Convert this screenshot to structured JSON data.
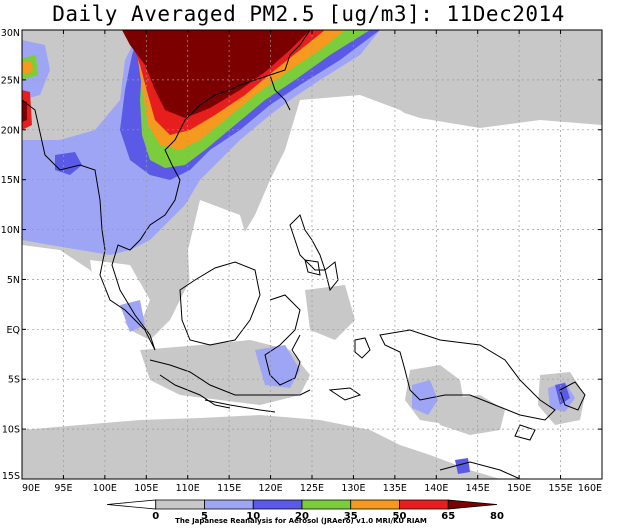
{
  "title": "Daily Averaged PM2.5 [ug/m3]: 11Dec2014",
  "credit": "The Japanese Reanalysis for Aerosol (JRAero) v1.0 MRI/KU RIAM",
  "map": {
    "lon_range": [
      90,
      160
    ],
    "lat_range": [
      -15,
      30
    ],
    "grid": true
  },
  "lon_ticks": [
    "90E",
    "95E",
    "100E",
    "105E",
    "110E",
    "115E",
    "120E",
    "125E",
    "130E",
    "135E",
    "140E",
    "145E",
    "150E",
    "155E",
    "160E"
  ],
  "lat_ticks": [
    "30N",
    "25N",
    "20N",
    "15N",
    "10N",
    "5N",
    "EQ",
    "5S",
    "10S",
    "15S"
  ],
  "colorbar": {
    "levels": [
      "0",
      "5",
      "10",
      "20",
      "35",
      "50",
      "65",
      "80"
    ],
    "colors": [
      "#ffffff",
      "#c8c8c8",
      "#9fa5f5",
      "#5a5ae6",
      "#7ccd3c",
      "#f59a1e",
      "#e61e1e",
      "#7d0000"
    ]
  }
}
